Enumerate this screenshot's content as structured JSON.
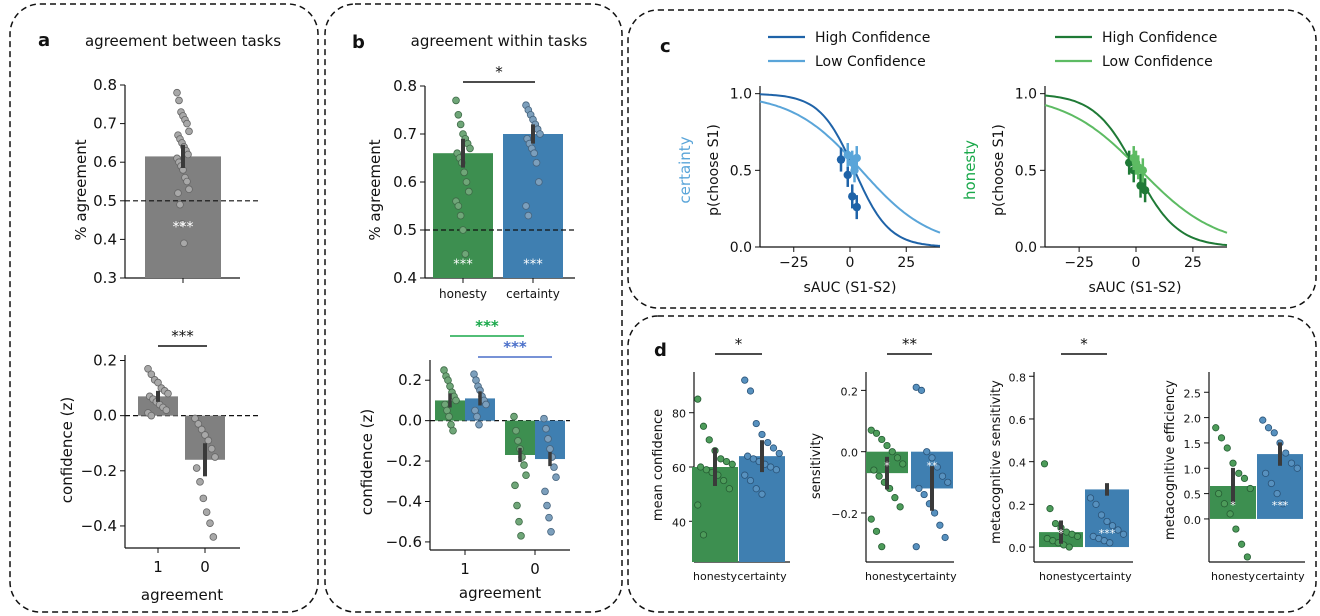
{
  "colors": {
    "gray": "#808080",
    "green": "#3d8f50",
    "blue": "#3f7fb1",
    "dark_green": "#1f7a36",
    "light_green": "#5dbb63",
    "dark_blue": "#1f63a8",
    "light_blue": "#5aa5d9",
    "sig_green": "#19a84a",
    "sig_blue": "#4a6fc9"
  },
  "panels": {
    "a": "a",
    "b": "b",
    "c": "c",
    "d": "d"
  },
  "chart_data": [
    {
      "id": "a-top",
      "type": "bar",
      "title": "agreement between tasks",
      "ylabel": "% agreement",
      "ylim": [
        0.3,
        0.8
      ],
      "yticks": [
        "0.3",
        "0.4",
        "0.5",
        "0.6",
        "0.7",
        "0.8"
      ],
      "categories": [
        ""
      ],
      "values": [
        0.615
      ],
      "sem": 0.03,
      "chance": 0.5,
      "stars": "***",
      "points": [
        0.78,
        0.76,
        0.73,
        0.72,
        0.71,
        0.7,
        0.68,
        0.67,
        0.66,
        0.65,
        0.64,
        0.63,
        0.62,
        0.61,
        0.6,
        0.59,
        0.58,
        0.56,
        0.55,
        0.53,
        0.52,
        0.49,
        0.44,
        0.39
      ]
    },
    {
      "id": "a-bottom",
      "type": "bar",
      "ylabel": "confidence (z)",
      "xlabel": "agreement",
      "ylim": [
        -0.48,
        0.22
      ],
      "yticks": [
        "−0.4",
        "−0.2",
        "0.0",
        "0.2"
      ],
      "categories": [
        "1",
        "0"
      ],
      "values": [
        0.07,
        -0.16
      ],
      "sem": [
        0.02,
        0.06
      ],
      "sig": "***",
      "points": [
        [
          0.17,
          0.15,
          0.13,
          0.12,
          0.1,
          0.09,
          0.08,
          0.07,
          0.06,
          0.05,
          0.04,
          0.03,
          0.02,
          0.01,
          0.0
        ],
        [
          -0.01,
          -0.03,
          -0.05,
          -0.07,
          -0.09,
          -0.12,
          -0.15,
          -0.19,
          -0.24,
          -0.3,
          -0.35,
          -0.39,
          -0.44
        ]
      ]
    },
    {
      "id": "b-top",
      "type": "bar",
      "title": "agreement within tasks",
      "ylabel": "% agreement",
      "ylim": [
        0.4,
        0.8
      ],
      "yticks": [
        "0.4",
        "0.5",
        "0.6",
        "0.7",
        "0.8"
      ],
      "categories": [
        "honesty",
        "certainty"
      ],
      "values": [
        0.66,
        0.7
      ],
      "sem": [
        0.03,
        0.02
      ],
      "chance": 0.5,
      "stars": [
        "***",
        "***"
      ],
      "sig": "*",
      "points": [
        [
          0.77,
          0.74,
          0.72,
          0.7,
          0.69,
          0.68,
          0.67,
          0.66,
          0.65,
          0.64,
          0.62,
          0.6,
          0.58,
          0.56,
          0.55,
          0.53,
          0.5,
          0.45
        ],
        [
          0.76,
          0.75,
          0.74,
          0.73,
          0.72,
          0.71,
          0.7,
          0.69,
          0.68,
          0.67,
          0.66,
          0.64,
          0.6,
          0.55,
          0.53
        ]
      ]
    },
    {
      "id": "b-bottom",
      "type": "bar",
      "ylabel": "confidence (z)",
      "xlabel": "agreement",
      "ylim": [
        -0.64,
        0.3
      ],
      "yticks": [
        "−0.6",
        "−0.4",
        "−0.2",
        "0.0",
        "0.2"
      ],
      "categories": [
        "1",
        "0"
      ],
      "series": [
        {
          "name": "honesty",
          "values": [
            0.1,
            -0.17
          ]
        },
        {
          "name": "certainty",
          "values": [
            0.11,
            -0.19
          ]
        }
      ],
      "sig": [
        "***",
        "***"
      ],
      "points": {
        "honesty": [
          [
            0.25,
            0.22,
            0.2,
            0.17,
            0.14,
            0.12,
            0.1,
            0.08,
            0.05,
            0.02,
            -0.02,
            -0.05
          ],
          [
            0.02,
            -0.05,
            -0.1,
            -0.14,
            -0.18,
            -0.22,
            -0.27,
            -0.32,
            -0.42,
            -0.5,
            -0.57
          ]
        ],
        "certainty": [
          [
            0.23,
            0.2,
            0.17,
            0.15,
            0.12,
            0.1,
            0.08,
            0.05,
            0.02,
            -0.02
          ],
          [
            0.01,
            -0.04,
            -0.09,
            -0.14,
            -0.18,
            -0.23,
            -0.28,
            -0.35,
            -0.42,
            -0.48,
            -0.55
          ]
        ]
      }
    },
    {
      "id": "c-left",
      "type": "line",
      "ylabel": "p(choose S1)",
      "xlabel": "sAUC (S1-S2)",
      "side_label": "certainty",
      "xlim": [
        -40,
        40
      ],
      "ylim": [
        0,
        1.05
      ],
      "xticks": [
        "−25",
        "0",
        "25"
      ],
      "yticks": [
        "0.0",
        "0.5",
        "1.0"
      ],
      "series": [
        {
          "name": "High Confidence",
          "slope": 0.13,
          "bias": 2
        },
        {
          "name": "Low Confidence",
          "slope": 0.065,
          "bias": 5
        }
      ],
      "points": [
        {
          "series": "High Confidence",
          "x": [
            -4,
            -1,
            1,
            3
          ],
          "y": [
            0.57,
            0.47,
            0.33,
            0.26
          ]
        },
        {
          "series": "Low Confidence",
          "x": [
            -1,
            1,
            2,
            3
          ],
          "y": [
            0.6,
            0.55,
            0.5,
            0.58
          ]
        }
      ]
    },
    {
      "id": "c-right",
      "type": "line",
      "ylabel": "p(choose S1)",
      "xlabel": "sAUC (S1-S2)",
      "side_label": "honesty",
      "xlim": [
        -40,
        40
      ],
      "ylim": [
        0,
        1.05
      ],
      "xticks": [
        "−25",
        "0",
        "25"
      ],
      "yticks": [
        "0.0",
        "0.5",
        "1.0"
      ],
      "series": [
        {
          "name": "High Confidence",
          "slope": 0.11,
          "bias": 0
        },
        {
          "name": "Low Confidence",
          "slope": 0.06,
          "bias": 2
        }
      ],
      "points": [
        {
          "series": "High Confidence",
          "x": [
            -3,
            -1,
            2,
            4
          ],
          "y": [
            0.55,
            0.5,
            0.4,
            0.37
          ]
        },
        {
          "series": "Low Confidence",
          "x": [
            -1,
            0,
            1,
            3
          ],
          "y": [
            0.58,
            0.55,
            0.52,
            0.5
          ]
        }
      ]
    },
    {
      "id": "d1",
      "type": "bar",
      "ylabel": "mean confidence",
      "categories": [
        "honesty",
        "certainty"
      ],
      "ylim": [
        25,
        95
      ],
      "yticks": [
        "40",
        "60",
        "80"
      ],
      "values": [
        60,
        64
      ],
      "sig": "*",
      "points": [
        [
          85,
          75,
          70,
          66,
          63,
          62,
          61,
          60,
          59,
          58,
          57,
          55,
          52,
          46,
          35
        ],
        [
          92,
          88,
          76,
          72,
          69,
          67,
          65,
          64,
          63,
          62,
          61,
          60,
          59,
          57,
          55,
          52,
          50
        ]
      ]
    },
    {
      "id": "d2",
      "type": "bar",
      "ylabel": "sensitivity",
      "categories": [
        "honesty",
        "certainty"
      ],
      "ylim": [
        -0.36,
        0.26
      ],
      "yticks": [
        "−0.2",
        "0.0",
        "0.2"
      ],
      "values": [
        -0.07,
        -0.12
      ],
      "stars": [
        "*",
        "**"
      ],
      "sig": "**",
      "points": [
        [
          0.07,
          0.06,
          0.04,
          0.02,
          0.0,
          -0.02,
          -0.04,
          -0.06,
          -0.08,
          -0.1,
          -0.12,
          -0.15,
          -0.18,
          -0.22,
          -0.26,
          -0.31
        ],
        [
          0.21,
          0.2,
          0.0,
          -0.02,
          -0.05,
          -0.08,
          -0.1,
          -0.12,
          -0.14,
          -0.17,
          -0.2,
          -0.24,
          -0.28,
          -0.31
        ]
      ]
    },
    {
      "id": "d3",
      "type": "bar",
      "ylabel": "metacognitive sensitivity",
      "categories": [
        "honesty",
        "certainty"
      ],
      "ylim": [
        -0.07,
        0.82
      ],
      "yticks": [
        "0.0",
        "0.2",
        "0.4",
        "0.6",
        "0.8"
      ],
      "values": [
        0.07,
        0.27
      ],
      "stars": [
        "*",
        "***"
      ],
      "sig": "*",
      "points": [
        [
          0.39,
          0.18,
          0.11,
          0.09,
          0.07,
          0.06,
          0.05,
          0.04,
          0.03,
          0.02,
          0.01,
          0.0
        ],
        [
          0.23,
          0.2,
          0.15,
          0.12,
          0.1,
          0.08,
          0.06,
          0.05,
          0.04,
          0.03,
          0.02
        ]
      ]
    },
    {
      "id": "d4",
      "type": "bar",
      "ylabel": "metacognitive efficiency",
      "categories": [
        "honesty",
        "certainty"
      ],
      "ylim": [
        -0.85,
        2.9
      ],
      "yticks": [
        "0.0",
        "0.5",
        "1.0",
        "1.5",
        "2.0",
        "2.5"
      ],
      "values": [
        0.65,
        1.28
      ],
      "stars": [
        "*",
        "***"
      ],
      "points": [
        [
          1.8,
          1.6,
          1.4,
          1.1,
          0.9,
          0.8,
          0.6,
          0.5,
          0.3,
          0.1,
          -0.2,
          -0.5,
          -0.75
        ],
        [
          1.95,
          1.8,
          1.7,
          1.5,
          1.3,
          1.1,
          1.0,
          0.9,
          0.7,
          0.5,
          0.3
        ]
      ]
    }
  ]
}
